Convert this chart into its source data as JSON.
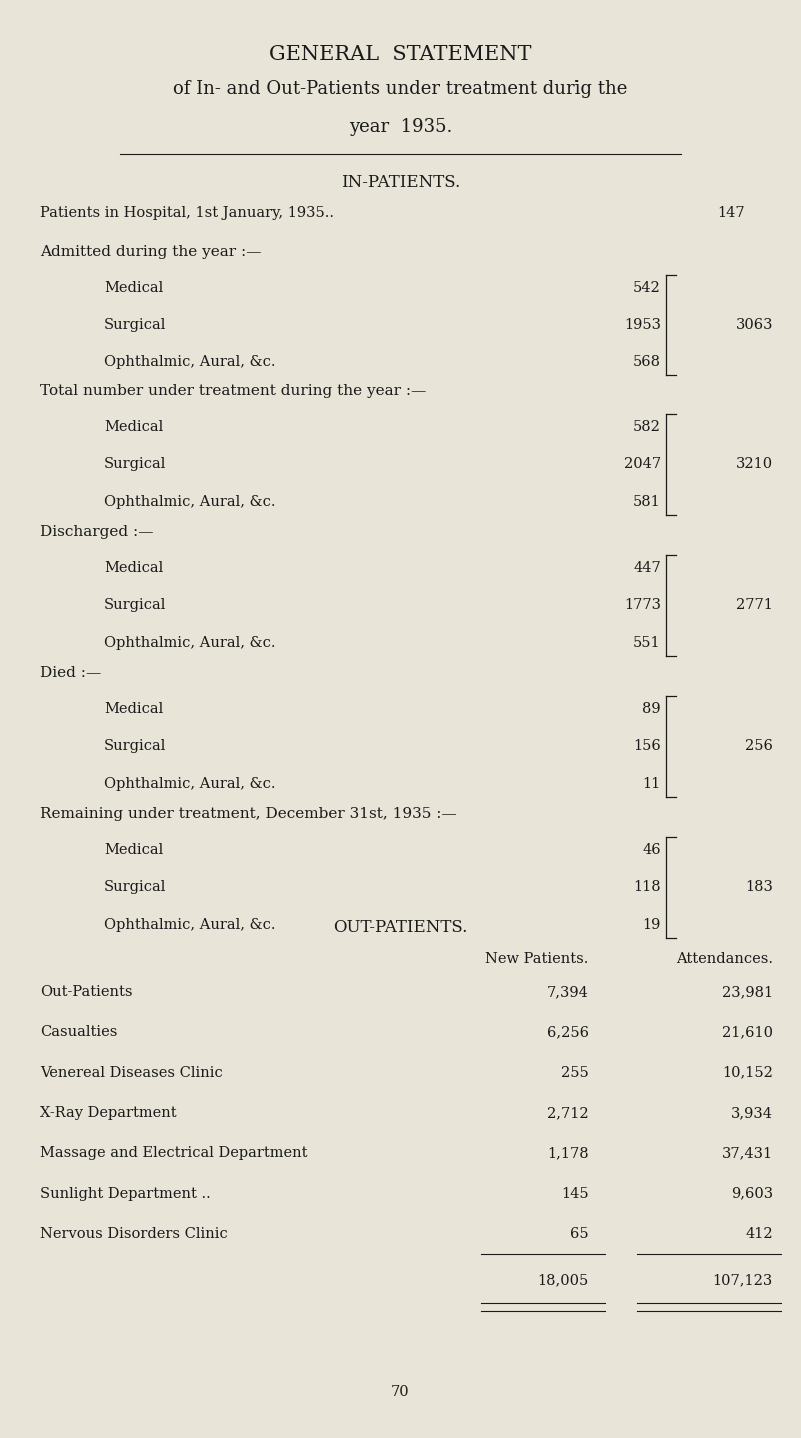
{
  "bg_color": "#e8e4d8",
  "text_color": "#1a1a1a",
  "title1": "GENERAL  STATEMENT",
  "title2": "of In- and Out-Patients under treatment duri̇g the",
  "title3": "year  1935.",
  "section_in": "IN-PATIENTS.",
  "patients_jan_label": "Patients in Hospital, 1st January, 1935..",
  "patients_jan_dots": "  ..  ..  ..  ..",
  "patients_jan_value": "147",
  "admitted_header": "Admitted during the year :—",
  "admitted": [
    {
      "label": "Medical",
      "dots": "..  ..  ..  ..  ..  ..  ..",
      "value": "542"
    },
    {
      "label": "Surgical",
      "dots": "..  ..  ..  ..  ..  ..  ..",
      "value": "1953"
    },
    {
      "label": "Ophthalmic, Aural, &c.",
      "dots": "..  ..  ..  ..  ..",
      "value": "568"
    }
  ],
  "admitted_total": "3063",
  "total_header": "Total number under treatment during the year :—",
  "total": [
    {
      "label": "Medical",
      "dots": "..  ..  ..  ..  ..  ..  ..",
      "value": "582"
    },
    {
      "label": "Surgical",
      "dots": "..  ..  ..  ..  ..  ..  ..",
      "value": "2047"
    },
    {
      "label": "Ophthalmic, Aural, &c.",
      "dots": "..  ..  ..  ..  ..",
      "value": "581"
    }
  ],
  "total_total": "3210",
  "discharged_header": "Discharged :—",
  "discharged": [
    {
      "label": "Medical",
      "dots": "..  ..  ..  ..  ..  ..  ..",
      "value": "447"
    },
    {
      "label": "Surgical",
      "dots": "..  ..  ..  ..  ..  ..  ..",
      "value": "1773"
    },
    {
      "label": "Ophthalmic, Aural, &c.",
      "dots": "..  ..  ..  ..  ..",
      "value": "551"
    }
  ],
  "discharged_total": "2771",
  "died_header": "Died :—",
  "died": [
    {
      "label": "Medical",
      "dots": "..  ..  ..  ..  ..  ..  ..",
      "value": "89"
    },
    {
      "label": "Surgical",
      "dots": "..  ..  ..  ..  ..  ..  ..",
      "value": "156"
    },
    {
      "label": "Ophthalmic, Aural, &c.",
      "dots": "..  ..  ..  ..  ..",
      "value": "11"
    }
  ],
  "died_total": "256",
  "remaining_header": "Remaining under treatment, December 31st, 1935 :—",
  "remaining": [
    {
      "label": "Medical",
      "dots": "..  ..  ..  ..  ..  ..  ..",
      "value": "46"
    },
    {
      "label": "Surgical",
      "dots": "..  ..  ..  ..  ..  ..  ..",
      "value": "118"
    },
    {
      "label": "Ophthalmic, Aural, &c.",
      "dots": "..  ..  ..  ..  ..",
      "value": "19"
    }
  ],
  "remaining_total": "183",
  "section_out": "OUT-PATIENTS.",
  "out_col1": "New Patients.",
  "out_col2": "Attendances.",
  "out_rows": [
    {
      "label": "Out-Patients",
      "new": "7,394",
      "att": "23,981"
    },
    {
      "label": "Casualties",
      "new": "6,256",
      "att": "21,610"
    },
    {
      "label": "Venereal Diseases Clinic",
      "new": "255",
      "att": "10,152"
    },
    {
      "label": "X-Ray Department",
      "new": "2,712",
      "att": "3,934"
    },
    {
      "label": "Massage and Electrical Department",
      "new": "1,178",
      "att": "37,431"
    },
    {
      "label": "Sunlight Department ..",
      "new": "145",
      "att": "9,603"
    },
    {
      "label": "Nervous Disorders Clinic",
      "new": "65",
      "att": "412"
    }
  ],
  "out_total_new": "18,005",
  "out_total_att": "107,123",
  "page_number": "70",
  "title_fontsize": 15,
  "subtitle_fontsize": 13,
  "body_fontsize": 10.5,
  "header_fontsize": 11,
  "section_fontsize": 12
}
